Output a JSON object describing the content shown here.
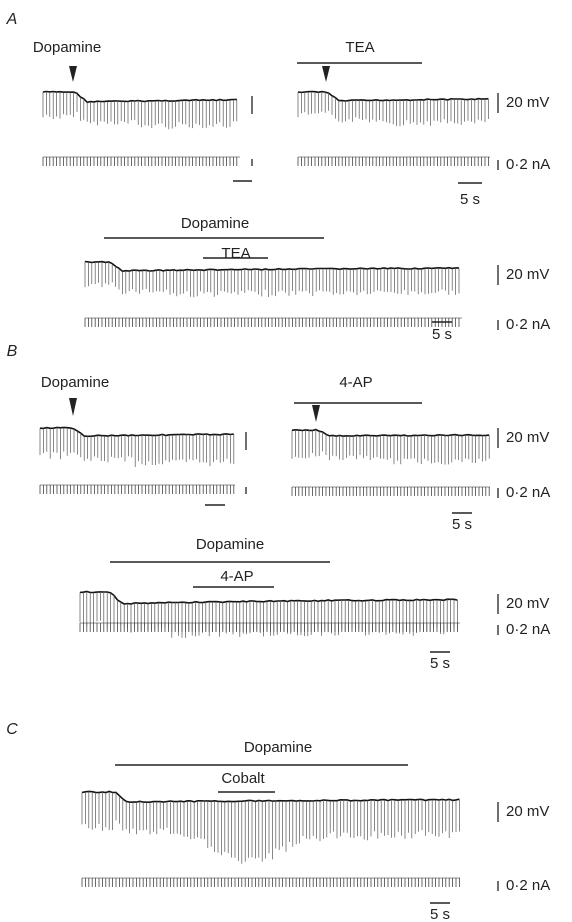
{
  "panels": [
    {
      "label": "A",
      "recordings": [
        {
          "drugs": [
            "Dopamine"
          ]
        },
        {
          "drugs": [
            "TEA"
          ],
          "voltage_scale": "20 mV",
          "current_scale": "0·2 nA",
          "time_scale": "5 s"
        },
        {
          "drugs": [
            "Dopamine",
            "TEA"
          ],
          "voltage_scale": "20 mV",
          "current_scale": "0·2 nA",
          "time_scale": "5 s"
        }
      ]
    },
    {
      "label": "B",
      "recordings": [
        {
          "drugs": [
            "Dopamine"
          ]
        },
        {
          "drugs": [
            "4-AP"
          ],
          "voltage_scale": "20 mV",
          "current_scale": "0·2 nA",
          "time_scale": "5 s"
        },
        {
          "drugs": [
            "Dopamine",
            "4-AP"
          ],
          "voltage_scale": "20 mV",
          "current_scale": "0·2 nA",
          "time_scale": "5 s"
        }
      ]
    },
    {
      "label": "C",
      "recordings": [
        {
          "drugs": [
            "Dopamine",
            "Cobalt"
          ],
          "voltage_scale": "20 mV",
          "current_scale": "0·2 nA",
          "time_scale": "5 s"
        }
      ]
    }
  ]
}
